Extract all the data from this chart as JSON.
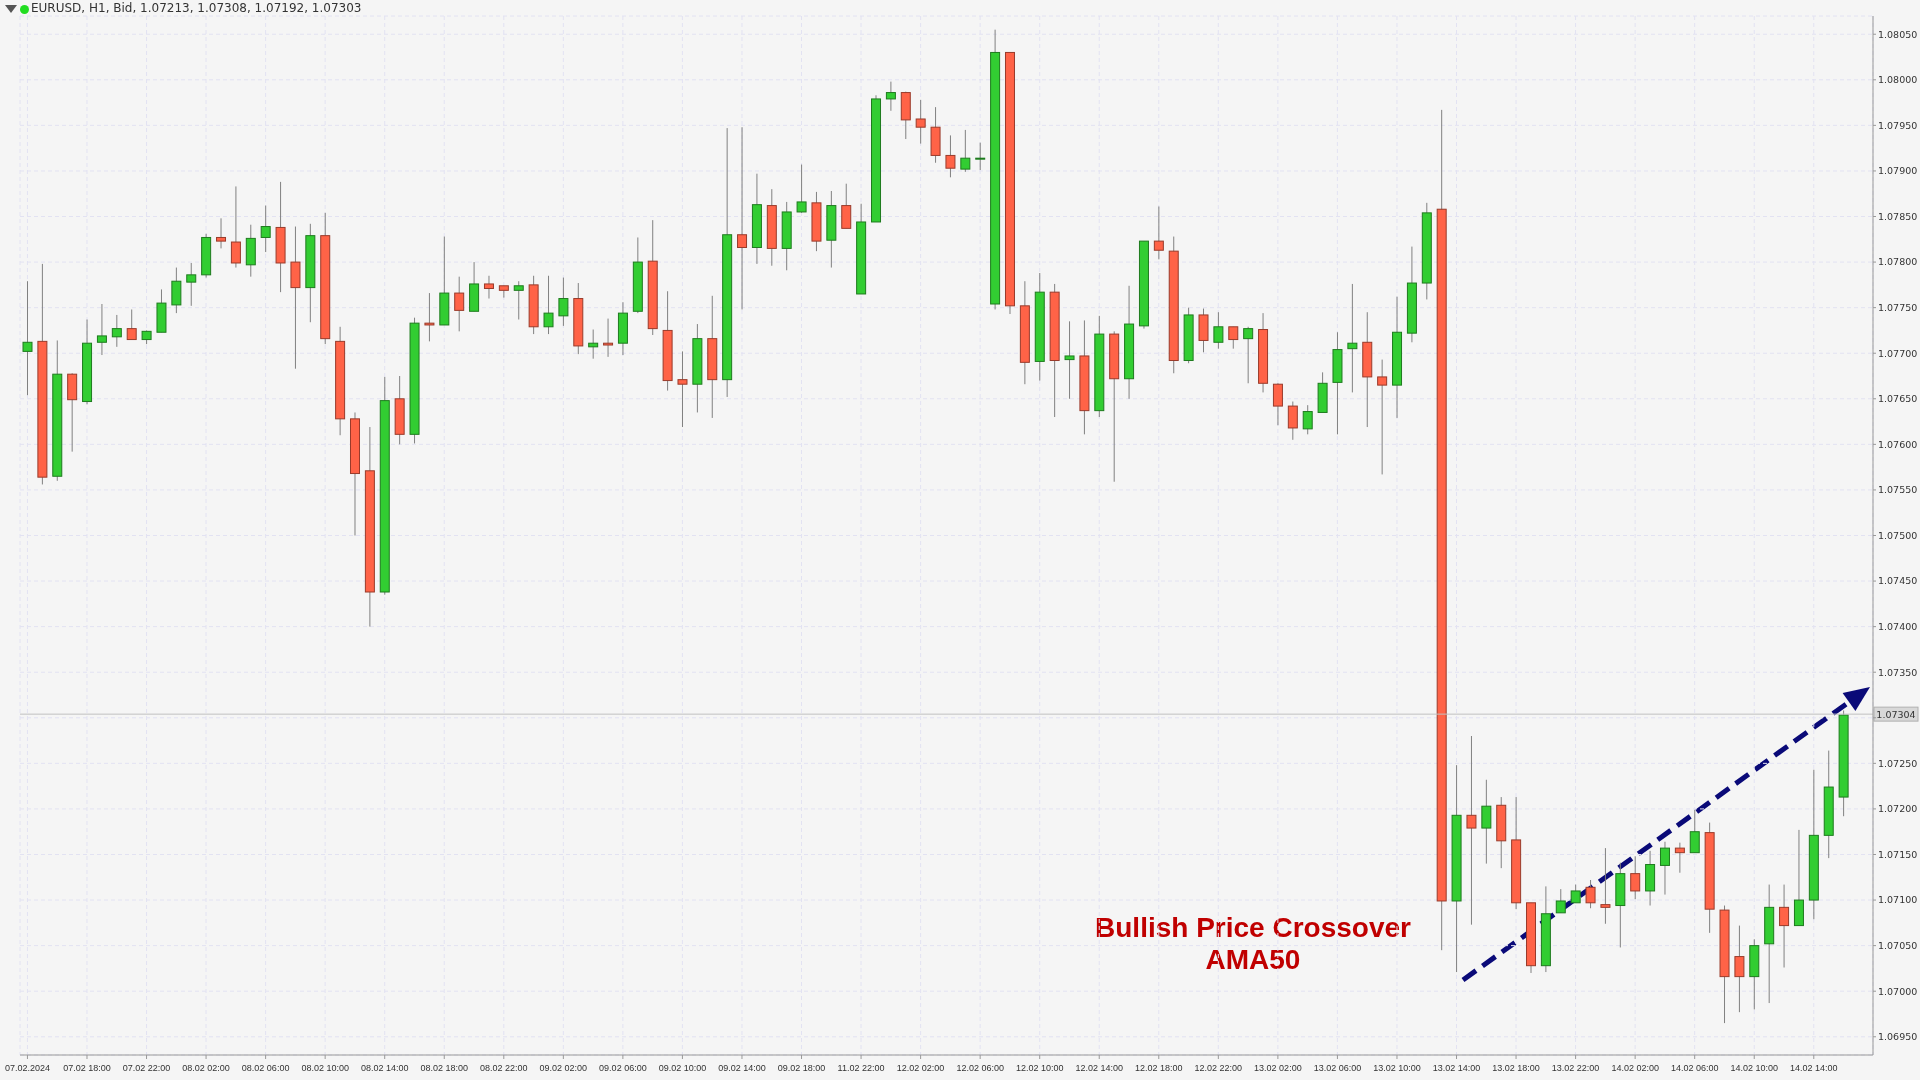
{
  "chart_data": {
    "type": "candlestick",
    "title": "EURUSD, H1, Bid, 1.07213, 1.07308, 1.07192, 1.07303",
    "annotations": [
      "Bullish Price Crossover AMA50"
    ],
    "categories": [
      "07.02.2024",
      null,
      null,
      null,
      "07.02 18:00",
      null,
      null,
      null,
      "07.02 22:00",
      null,
      null,
      null,
      "08.02 02:00",
      null,
      null,
      null,
      "08.02 06:00",
      null,
      null,
      null,
      "08.02 10:00",
      null,
      null,
      null,
      "08.02 14:00",
      null,
      null,
      null,
      "08.02 18:00",
      null,
      null,
      null,
      "08.02 22:00",
      null,
      null,
      null,
      "09.02 02:00",
      null,
      null,
      null,
      "09.02 06:00",
      null,
      null,
      null,
      "09.02 10:00",
      null,
      null,
      null,
      "09.02 14:00",
      null,
      null,
      null,
      "09.02 18:00",
      null,
      null,
      null,
      "11.02 22:00",
      null,
      null,
      null,
      "12.02 02:00",
      null,
      null,
      null,
      "12.02 06:00",
      null,
      null,
      null,
      "12.02 10:00",
      null,
      null,
      null,
      "12.02 14:00",
      null,
      null,
      null,
      "12.02 18:00",
      null,
      null,
      null,
      "12.02 22:00",
      null,
      null,
      null,
      "13.02 02:00",
      null,
      null,
      null,
      "13.02 06:00",
      null,
      null,
      null,
      "13.02 10:00",
      null,
      null,
      null,
      "13.02 14:00",
      null,
      null,
      null,
      "13.02 18:00",
      null,
      null,
      null,
      "13.02 22:00",
      null,
      null,
      null,
      "14.02 02:00",
      null,
      null,
      null,
      "14.02 06:00",
      null,
      null,
      null,
      "14.02 10:00",
      null,
      null,
      null,
      "14.02 14:00",
      null,
      null
    ],
    "ohlc": [
      [
        1.07702,
        1.07779,
        1.07654,
        1.07712
      ],
      [
        1.07713,
        1.07798,
        1.07556,
        1.07564
      ],
      [
        1.07565,
        1.07714,
        1.0756,
        1.07677
      ],
      [
        1.07677,
        1.07678,
        1.07592,
        1.07649
      ],
      [
        1.07647,
        1.07737,
        1.07644,
        1.07711
      ],
      [
        1.07712,
        1.07754,
        1.07698,
        1.07719
      ],
      [
        1.07718,
        1.07742,
        1.07707,
        1.07727
      ],
      [
        1.07727,
        1.07748,
        1.07715,
        1.07715
      ],
      [
        1.07715,
        1.07725,
        1.0771,
        1.07724
      ],
      [
        1.07723,
        1.0777,
        1.07723,
        1.07755
      ],
      [
        1.07753,
        1.07794,
        1.07744,
        1.07779
      ],
      [
        1.07778,
        1.07799,
        1.07752,
        1.07786
      ],
      [
        1.07786,
        1.07831,
        1.07783,
        1.07827
      ],
      [
        1.07827,
        1.07848,
        1.07815,
        1.07823
      ],
      [
        1.07822,
        1.07883,
        1.07794,
        1.07799
      ],
      [
        1.07797,
        1.07841,
        1.07784,
        1.07826
      ],
      [
        1.07827,
        1.07862,
        1.07811,
        1.07839
      ],
      [
        1.07838,
        1.07888,
        1.07767,
        1.07799
      ],
      [
        1.078,
        1.07839,
        1.07683,
        1.07772
      ],
      [
        1.07772,
        1.07842,
        1.07734,
        1.07829
      ],
      [
        1.07829,
        1.07854,
        1.0771,
        1.07716
      ],
      [
        1.07713,
        1.07729,
        1.0761,
        1.07628
      ],
      [
        1.07628,
        1.07635,
        1.075,
        1.07568
      ],
      [
        1.07571,
        1.07619,
        1.074,
        1.07438
      ],
      [
        1.07438,
        1.07674,
        1.07435,
        1.07648
      ],
      [
        1.0765,
        1.07675,
        1.076,
        1.07611
      ],
      [
        1.07611,
        1.07739,
        1.07601,
        1.07733
      ],
      [
        1.07733,
        1.07766,
        1.07713,
        1.07731
      ],
      [
        1.07731,
        1.07828,
        1.07731,
        1.07766
      ],
      [
        1.07766,
        1.07784,
        1.07724,
        1.07747
      ],
      [
        1.07746,
        1.078,
        1.07746,
        1.07776
      ],
      [
        1.07776,
        1.07785,
        1.0776,
        1.07771
      ],
      [
        1.07774,
        1.07774,
        1.07761,
        1.07769
      ],
      [
        1.07769,
        1.07779,
        1.07737,
        1.07774
      ],
      [
        1.07775,
        1.07785,
        1.07721,
        1.07729
      ],
      [
        1.07729,
        1.07785,
        1.07721,
        1.07744
      ],
      [
        1.07741,
        1.07783,
        1.0773,
        1.0776
      ],
      [
        1.0776,
        1.07777,
        1.07699,
        1.07708
      ],
      [
        1.07707,
        1.07726,
        1.07694,
        1.07711
      ],
      [
        1.07711,
        1.07738,
        1.07696,
        1.07709
      ],
      [
        1.07711,
        1.07756,
        1.07698,
        1.07744
      ],
      [
        1.07746,
        1.07827,
        1.07744,
        1.078
      ],
      [
        1.07801,
        1.07846,
        1.0772,
        1.07727
      ],
      [
        1.07725,
        1.07768,
        1.07659,
        1.0767
      ],
      [
        1.07671,
        1.07702,
        1.07619,
        1.07666
      ],
      [
        1.07666,
        1.07732,
        1.07635,
        1.07716
      ],
      [
        1.07716,
        1.07763,
        1.07629,
        1.07671
      ],
      [
        1.07671,
        1.07947,
        1.07652,
        1.0783
      ],
      [
        1.0783,
        1.07948,
        1.07748,
        1.07816
      ],
      [
        1.07816,
        1.07897,
        1.07798,
        1.07863
      ],
      [
        1.07862,
        1.0788,
        1.07796,
        1.07815
      ],
      [
        1.07815,
        1.07866,
        1.07791,
        1.07855
      ],
      [
        1.07855,
        1.07907,
        1.07854,
        1.07866
      ],
      [
        1.07865,
        1.07877,
        1.07812,
        1.07823
      ],
      [
        1.07824,
        1.07878,
        1.07794,
        1.07862
      ],
      [
        1.07862,
        1.07886,
        1.07837,
        1.07837
      ],
      [
        1.07765,
        1.07864,
        1.07765,
        1.07844
      ],
      [
        1.07844,
        1.07983,
        1.07844,
        1.07979
      ],
      [
        1.07979,
        1.07998,
        1.07966,
        1.07986
      ],
      [
        1.07986,
        1.07987,
        1.07935,
        1.07956
      ],
      [
        1.07957,
        1.07978,
        1.0793,
        1.07948
      ],
      [
        1.07948,
        1.0797,
        1.07909,
        1.07917
      ],
      [
        1.07917,
        1.07939,
        1.07893,
        1.07903
      ],
      [
        1.07902,
        1.07945,
        1.07899,
        1.07914
      ],
      [
        1.07913,
        1.07931,
        1.07901,
        1.07914
      ],
      [
        1.07754,
        1.08055,
        1.07748,
        1.0803
      ],
      [
        1.0803,
        1.0803,
        1.07743,
        1.07752
      ],
      [
        1.07752,
        1.07779,
        1.07666,
        1.0769
      ],
      [
        1.07691,
        1.07788,
        1.0767,
        1.07767
      ],
      [
        1.07767,
        1.07776,
        1.0763,
        1.07692
      ],
      [
        1.07693,
        1.07735,
        1.0765,
        1.07697
      ],
      [
        1.07697,
        1.07736,
        1.07611,
        1.07637
      ],
      [
        1.07637,
        1.07741,
        1.0763,
        1.07721
      ],
      [
        1.07721,
        1.07724,
        1.07559,
        1.07672
      ],
      [
        1.07672,
        1.07774,
        1.0765,
        1.07732
      ],
      [
        1.0773,
        1.07823,
        1.07727,
        1.07823
      ],
      [
        1.07823,
        1.07861,
        1.07803,
        1.07813
      ],
      [
        1.07812,
        1.07828,
        1.07678,
        1.07692
      ],
      [
        1.07692,
        1.0775,
        1.07689,
        1.07742
      ],
      [
        1.07742,
        1.07749,
        1.07701,
        1.07714
      ],
      [
        1.07712,
        1.07745,
        1.07705,
        1.07729
      ],
      [
        1.07729,
        1.07729,
        1.07705,
        1.07715
      ],
      [
        1.07716,
        1.07729,
        1.07667,
        1.07727
      ],
      [
        1.07726,
        1.07744,
        1.07657,
        1.07667
      ],
      [
        1.07666,
        1.07667,
        1.07621,
        1.07642
      ],
      [
        1.07642,
        1.07647,
        1.07605,
        1.07618
      ],
      [
        1.07617,
        1.07643,
        1.07611,
        1.07636
      ],
      [
        1.07635,
        1.07679,
        1.07635,
        1.07667
      ],
      [
        1.07668,
        1.07723,
        1.07611,
        1.07704
      ],
      [
        1.07705,
        1.07776,
        1.07657,
        1.07711
      ],
      [
        1.07712,
        1.07745,
        1.07619,
        1.07674
      ],
      [
        1.07674,
        1.07693,
        1.07567,
        1.07665
      ],
      [
        1.07665,
        1.07762,
        1.07629,
        1.07723
      ],
      [
        1.07722,
        1.07817,
        1.07712,
        1.07777
      ],
      [
        1.07777,
        1.07865,
        1.07759,
        1.07854
      ],
      [
        1.07858,
        1.07967,
        1.07045,
        1.07099
      ],
      [
        1.07099,
        1.07248,
        1.07021,
        1.07193
      ],
      [
        1.07193,
        1.0728,
        1.07073,
        1.07179
      ],
      [
        1.07179,
        1.07232,
        1.0714,
        1.07203
      ],
      [
        1.07204,
        1.07213,
        1.07135,
        1.07165
      ],
      [
        1.07166,
        1.07213,
        1.0709,
        1.07097
      ],
      [
        1.07097,
        1.07097,
        1.0702,
        1.07028
      ],
      [
        1.07028,
        1.07115,
        1.07021,
        1.07085
      ],
      [
        1.07086,
        1.07112,
        1.07086,
        1.07099
      ],
      [
        1.07097,
        1.07117,
        1.07097,
        1.0711
      ],
      [
        1.07114,
        1.07122,
        1.07091,
        1.07097
      ],
      [
        1.07095,
        1.07157,
        1.07074,
        1.07092
      ],
      [
        1.07094,
        1.07141,
        1.07048,
        1.07129
      ],
      [
        1.07129,
        1.07148,
        1.07101,
        1.0711
      ],
      [
        1.0711,
        1.07154,
        1.07094,
        1.07139
      ],
      [
        1.07138,
        1.07164,
        1.07106,
        1.07157
      ],
      [
        1.07157,
        1.07163,
        1.0713,
        1.07152
      ],
      [
        1.07152,
        1.07199,
        1.07152,
        1.07175
      ],
      [
        1.07174,
        1.07185,
        1.07064,
        1.0709
      ],
      [
        1.07089,
        1.07094,
        1.06965,
        1.07016
      ],
      [
        1.07038,
        1.07072,
        1.06977,
        1.07016
      ],
      [
        1.07016,
        1.07057,
        1.0698,
        1.0705
      ],
      [
        1.07052,
        1.07117,
        1.06987,
        1.07092
      ],
      [
        1.07092,
        1.07117,
        1.07026,
        1.07072
      ],
      [
        1.07072,
        1.07177,
        1.07072,
        1.071
      ],
      [
        1.071,
        1.07243,
        1.07079,
        1.07171
      ],
      [
        1.07171,
        1.07264,
        1.07146,
        1.07224
      ],
      [
        1.07213,
        1.07308,
        1.07192,
        1.07303
      ]
    ],
    "colors": [
      "#32cd32",
      "#ff6347",
      "#32cd32",
      "#ff6347",
      "#32cd32",
      "#32cd32",
      "#32cd32",
      "#ff6347",
      "#32cd32",
      "#32cd32",
      "#32cd32",
      "#32cd32",
      "#32cd32",
      "#ff6347",
      "#ff6347",
      "#32cd32",
      "#32cd32",
      "#ff6347",
      "#ff6347",
      "#32cd32",
      "#ff6347",
      "#ff6347",
      "#ff6347",
      "#ff6347",
      "#32cd32",
      "#ff6347",
      "#32cd32",
      "#ff6347",
      "#32cd32",
      "#ff6347",
      "#32cd32",
      "#ff6347",
      "#ff6347",
      "#32cd32",
      "#ff6347",
      "#32cd32",
      "#32cd32",
      "#ff6347",
      "#32cd32",
      "#ff6347",
      "#32cd32",
      "#32cd32",
      "#ff6347",
      "#ff6347",
      "#ff6347",
      "#32cd32",
      "#ff6347",
      "#32cd32",
      "#ff6347",
      "#32cd32",
      "#ff6347",
      "#32cd32",
      "#32cd32",
      "#ff6347",
      "#32cd32",
      "#ff6347",
      "#32cd32",
      "#32cd32",
      "#32cd32",
      "#ff6347",
      "#ff6347",
      "#ff6347",
      "#ff6347",
      "#32cd32",
      "#32cd32",
      "#32cd32",
      "#ff6347",
      "#ff6347",
      "#32cd32",
      "#ff6347",
      "#32cd32",
      "#ff6347",
      "#32cd32",
      "#ff6347",
      "#32cd32",
      "#32cd32",
      "#ff6347",
      "#ff6347",
      "#32cd32",
      "#ff6347",
      "#32cd32",
      "#ff6347",
      "#32cd32",
      "#ff6347",
      "#ff6347",
      "#ff6347",
      "#32cd32",
      "#32cd32",
      "#32cd32",
      "#32cd32",
      "#ff6347",
      "#ff6347",
      "#32cd32",
      "#32cd32",
      "#32cd32",
      "#ff6347",
      "#32cd32",
      "#ff6347",
      "#32cd32",
      "#ff6347",
      "#ff6347",
      "#ff6347",
      "#32cd32",
      "#32cd32",
      "#32cd32",
      "#ff6347",
      "#ff6347",
      "#32cd32",
      "#ff6347",
      "#32cd32",
      "#32cd32",
      "#ff6347",
      "#32cd32",
      "#ff6347",
      "#ff6347",
      "#ff6347",
      "#32cd32",
      "#32cd32",
      "#ff6347",
      "#32cd32",
      "#32cd32",
      "#32cd32",
      "#32cd32"
    ],
    "ylim": [
      1.0693,
      1.0807
    ],
    "yticks": [
      {
        "value": 1.0695,
        "label": "1.06950"
      },
      {
        "value": 1.07,
        "label": "1.07000"
      },
      {
        "value": 1.0705,
        "label": "1.07050"
      },
      {
        "value": 1.071,
        "label": "1.07100"
      },
      {
        "value": 1.0715,
        "label": "1.07150"
      },
      {
        "value": 1.072,
        "label": "1.07200"
      },
      {
        "value": 1.0725,
        "label": "1.07250"
      },
      {
        "value": 1.073,
        "label": null
      },
      {
        "value": 1.0735,
        "label": "1.07350"
      },
      {
        "value": 1.074,
        "label": "1.07400"
      },
      {
        "value": 1.0745,
        "label": "1.07450"
      },
      {
        "value": 1.075,
        "label": "1.07500"
      },
      {
        "value": 1.0755,
        "label": "1.07550"
      },
      {
        "value": 1.076,
        "label": "1.07600"
      },
      {
        "value": 1.0765,
        "label": "1.07650"
      },
      {
        "value": 1.077,
        "label": "1.07700"
      },
      {
        "value": 1.0775,
        "label": "1.07750"
      },
      {
        "value": 1.078,
        "label": "1.07800"
      },
      {
        "value": 1.0785,
        "label": "1.07850"
      },
      {
        "value": 1.079,
        "label": "1.07900"
      },
      {
        "value": 1.0795,
        "label": "1.07950"
      },
      {
        "value": 1.08,
        "label": "1.08000"
      },
      {
        "value": 1.0805,
        "label": "1.08050"
      }
    ],
    "ref_lines": [
      {
        "axis": "y",
        "value": 1.07304,
        "label": "1.07304",
        "color": "#c0c0c0"
      }
    ],
    "grid": true
  }
}
